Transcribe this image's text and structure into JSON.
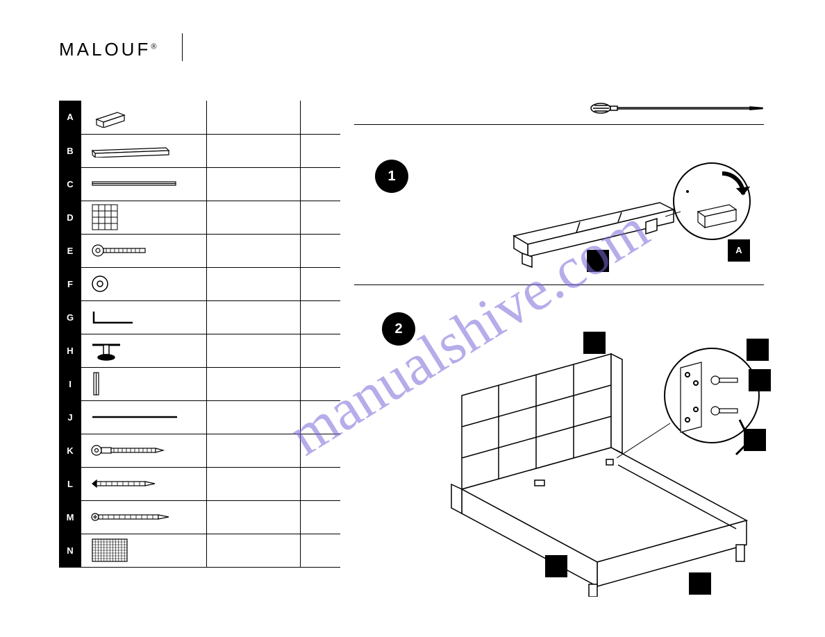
{
  "brand": {
    "name": "MALOUF",
    "mark": "®"
  },
  "watermark": "manualshive.com",
  "parts": [
    {
      "label": "A",
      "name": "",
      "qty": ""
    },
    {
      "label": "B",
      "name": "",
      "qty": ""
    },
    {
      "label": "C",
      "name": "",
      "qty": ""
    },
    {
      "label": "D",
      "name": "",
      "qty": ""
    },
    {
      "label": "E",
      "name": "",
      "qty": ""
    },
    {
      "label": "F",
      "name": "",
      "qty": ""
    },
    {
      "label": "G",
      "name": "",
      "qty": ""
    },
    {
      "label": "H",
      "name": "",
      "qty": ""
    },
    {
      "label": "I",
      "name": "",
      "qty": ""
    },
    {
      "label": "J",
      "name": "",
      "qty": ""
    },
    {
      "label": "K",
      "name": "",
      "qty": ""
    },
    {
      "label": "L",
      "name": "",
      "qty": ""
    },
    {
      "label": "M",
      "name": "",
      "qty": ""
    },
    {
      "label": "N",
      "name": "",
      "qty": ""
    }
  ],
  "steps": {
    "step1": "1",
    "step2": "2"
  },
  "diagram1_labels": {
    "a": "A",
    "b": ""
  },
  "diagram2_labels": {
    "a": "",
    "b": "",
    "c": "",
    "d": "",
    "e": "",
    "f": ""
  }
}
